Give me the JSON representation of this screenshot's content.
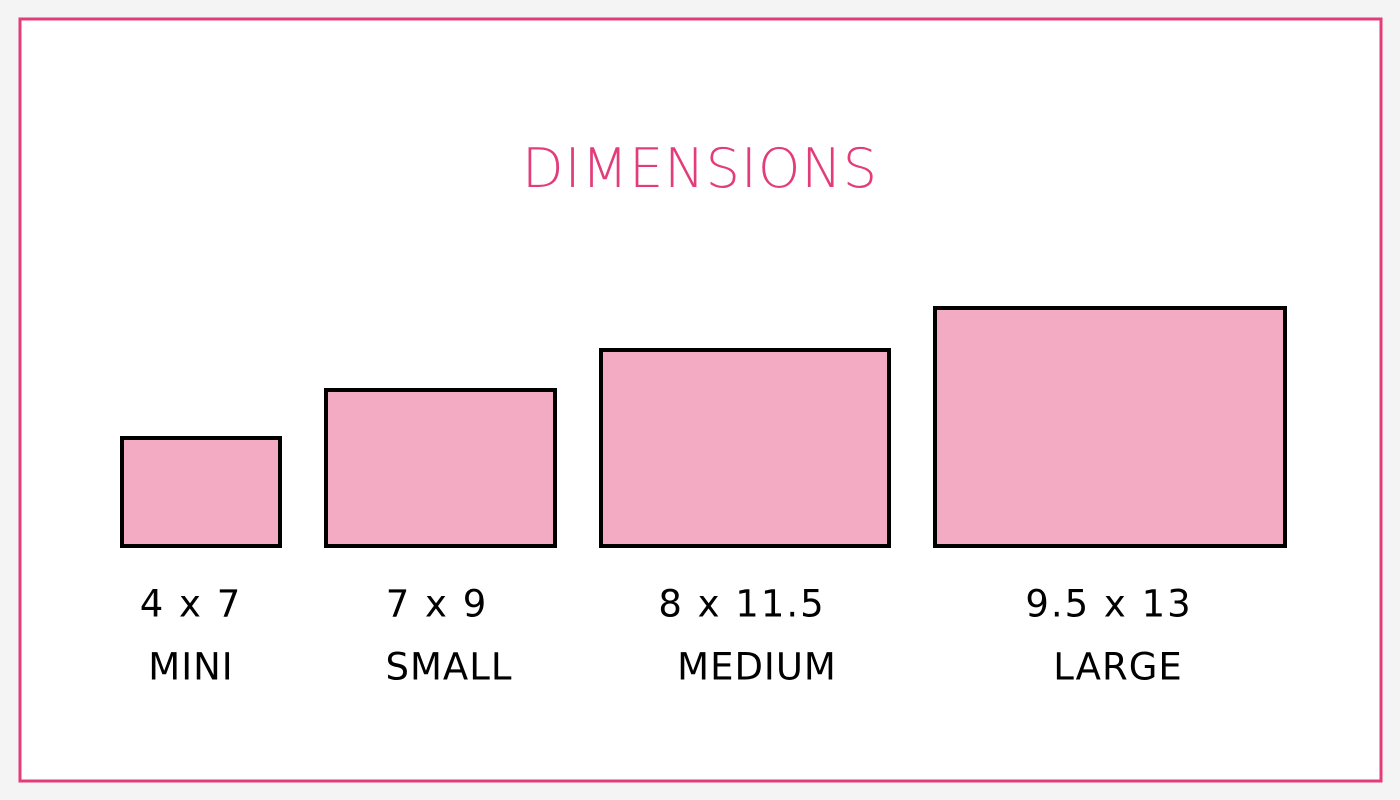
{
  "header": {
    "title": "DIMENSIONS"
  },
  "items": [
    {
      "size": "4 x 7",
      "label": "MINI"
    },
    {
      "size": "7 x 9",
      "label": "SMALL"
    },
    {
      "size": "8 x 11.5",
      "label": "MEDIUM"
    },
    {
      "size": "9.5 x 13",
      "label": "LARGE"
    }
  ]
}
